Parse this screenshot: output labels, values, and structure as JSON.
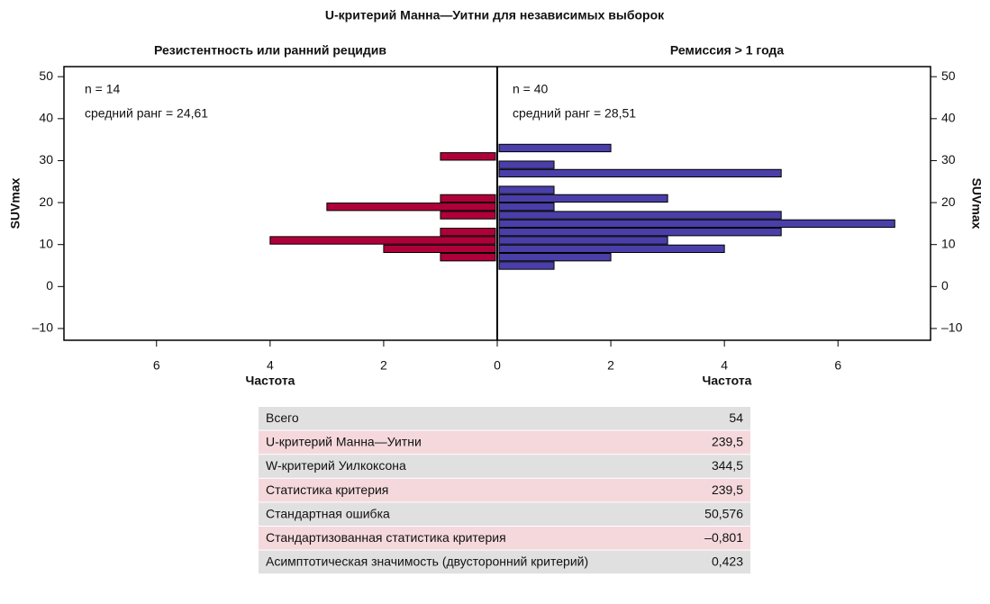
{
  "chart_data": {
    "type": "histogram",
    "title": "U-критерий Манна—Уитни для независимых выборок",
    "ylabel": "SUVmax",
    "xlabel": "Частота",
    "bins": [
      4,
      6,
      8,
      10,
      12,
      14,
      16,
      18,
      20,
      22,
      24,
      26,
      28,
      30,
      32,
      34
    ],
    "ylim": [
      -12.8,
      52.4
    ],
    "yticks": [
      {
        "value": -10,
        "label": "–10"
      },
      0,
      10,
      20,
      30,
      40,
      50
    ],
    "xlim": [
      0,
      7.63
    ],
    "xticks": [
      0,
      2,
      4,
      6
    ],
    "series": [
      {
        "name": "Резистентность или ранний рецидив",
        "color": "#b0003a",
        "values": [
          0,
          1,
          2,
          4,
          1,
          0,
          1,
          3,
          1,
          0,
          0,
          0,
          0,
          1,
          0
        ],
        "annotations": [
          "n = 14",
          "средний ранг = 24,61"
        ]
      },
      {
        "name": "Ремиссия > 1 года",
        "color": "#4a3fa8",
        "values": [
          1,
          2,
          4,
          3,
          5,
          7,
          5,
          1,
          3,
          1,
          0,
          5,
          1,
          0,
          2
        ],
        "annotations": [
          "n = 40",
          "средний ранг = 28,51"
        ]
      }
    ]
  },
  "table": {
    "rows": [
      [
        "Всего",
        "54"
      ],
      [
        "U-критерий Манна—Уитни",
        "239,5"
      ],
      [
        "W-критерий Уилкоксона",
        "344,5"
      ],
      [
        "Статистика критерия",
        "239,5"
      ],
      [
        "Стандартная ошибка",
        "50,576"
      ],
      [
        "Стандартизованная статистика критерия",
        "–0,801"
      ],
      [
        "Асимптотическая значимость (двусторонний критерий)",
        "0,423"
      ]
    ]
  }
}
